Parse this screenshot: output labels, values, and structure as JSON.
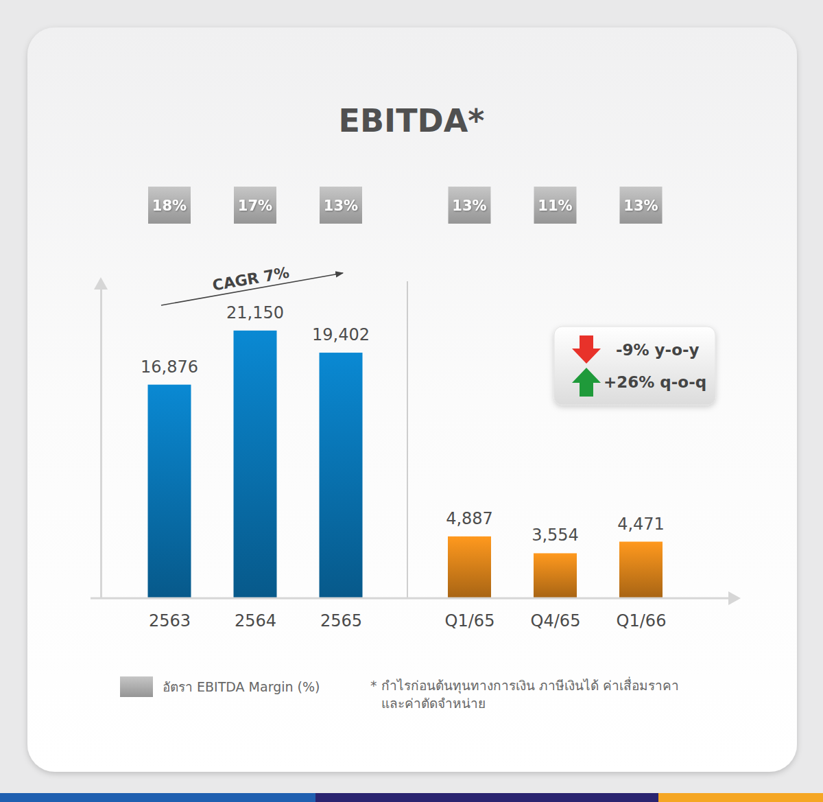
{
  "chart_data": {
    "type": "bar",
    "title": "EBITDA*",
    "categories": [
      "2563",
      "2564",
      "2565",
      "Q1/65",
      "Q4/65",
      "Q1/66"
    ],
    "values": [
      16876,
      21150,
      19402,
      4887,
      3554,
      4471
    ],
    "value_labels": [
      "16,876",
      "21,150",
      "19,402",
      "4,887",
      "3,554",
      "4,471"
    ],
    "colors": [
      "#0a84cc",
      "#0a84cc",
      "#0a84cc",
      "#f7941d",
      "#f7941d",
      "#f7941d"
    ],
    "ylim": [
      0,
      24500
    ],
    "tick_labels": "x",
    "data_labels": true,
    "margin": {
      "label": "อัตรา EBITDA Margin (%)",
      "values": [
        18,
        17,
        13,
        13,
        11,
        13
      ],
      "value_labels": [
        "18%",
        "17%",
        "13%",
        "13%",
        "11%",
        "13%"
      ],
      "color": "#a6a6a6"
    },
    "annotations": [
      {
        "text": "CAGR 7%"
      },
      {
        "text": "-9% y-o-y"
      },
      {
        "text": "+26% q-o-q"
      }
    ],
    "footnote": [
      "* กำไรก่อนต้นทุนทางการเงิน ภาษีเงินได้ ค่าเสื่อมราคา",
      "และค่าตัดจำหน่าย"
    ]
  }
}
